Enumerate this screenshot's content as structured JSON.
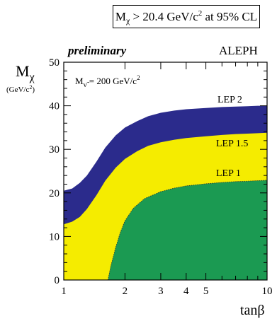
{
  "header": {
    "banner_symbol": "M",
    "banner_sub": "χ",
    "banner_mid": " > 20.4 GeV/c",
    "banner_sup": "2",
    "banner_end": " at 95% CL",
    "preliminary": "preliminary",
    "experiment": "ALEPH"
  },
  "axes": {
    "ylabel_symbol": "M",
    "ylabel_sub": "χ",
    "yunit_main": "(GeV/c",
    "yunit_sup": "2",
    "yunit_end": ")",
    "xlabel": "tanβ"
  },
  "annotation": {
    "text": "M",
    "sub": "ν̃",
    "rest": " = 200 GeV/c",
    "sup": "2"
  },
  "chart_data": {
    "type": "area",
    "xscale": "log",
    "xlim": [
      1,
      10
    ],
    "ylim": [
      0,
      50
    ],
    "x_ticks": [
      1,
      2,
      3,
      4,
      5,
      10
    ],
    "x_tick_labels": [
      "1",
      "2",
      "3",
      "4",
      "5",
      "10"
    ],
    "y_ticks": [
      0,
      10,
      20,
      30,
      40,
      50
    ],
    "y_tick_labels": [
      "0",
      "10",
      "20",
      "30",
      "40",
      "50"
    ],
    "series": [
      {
        "name": "LEP 2",
        "color": "#2b2b8c",
        "x": [
          1,
          1.1,
          1.2,
          1.3,
          1.45,
          1.6,
          1.8,
          2.0,
          2.3,
          2.6,
          3.0,
          3.5,
          4.0,
          5.0,
          6.0,
          7.0,
          8.0,
          9.0,
          10
        ],
        "values": [
          20.5,
          21.0,
          22.3,
          24.0,
          27.2,
          30.4,
          33.2,
          35.0,
          36.5,
          37.6,
          38.4,
          38.9,
          39.2,
          39.5,
          39.7,
          39.8,
          39.9,
          40.0,
          40.0
        ]
      },
      {
        "name": "LEP 1.5",
        "color": "#f5ec00",
        "x": [
          1,
          1.1,
          1.2,
          1.3,
          1.45,
          1.6,
          1.8,
          2.0,
          2.3,
          2.6,
          3.0,
          3.5,
          4.0,
          5.0,
          6.0,
          7.0,
          8.0,
          9.0,
          10
        ],
        "values": [
          12.8,
          13.4,
          14.5,
          16.3,
          19.5,
          22.8,
          25.8,
          27.8,
          29.6,
          30.8,
          31.6,
          32.2,
          32.6,
          33.0,
          33.3,
          33.5,
          33.6,
          33.7,
          33.8
        ]
      },
      {
        "name": "LEP 1",
        "color": "#1b9a52",
        "x": [
          1.65,
          1.7,
          1.8,
          1.9,
          2.0,
          2.2,
          2.5,
          3.0,
          3.5,
          4.0,
          5.0,
          6.0,
          7.0,
          8.0,
          10
        ],
        "values": [
          0,
          3.0,
          7.5,
          11.0,
          13.6,
          16.5,
          18.7,
          20.3,
          21.1,
          21.6,
          22.1,
          22.4,
          22.6,
          22.7,
          22.9
        ]
      }
    ]
  }
}
